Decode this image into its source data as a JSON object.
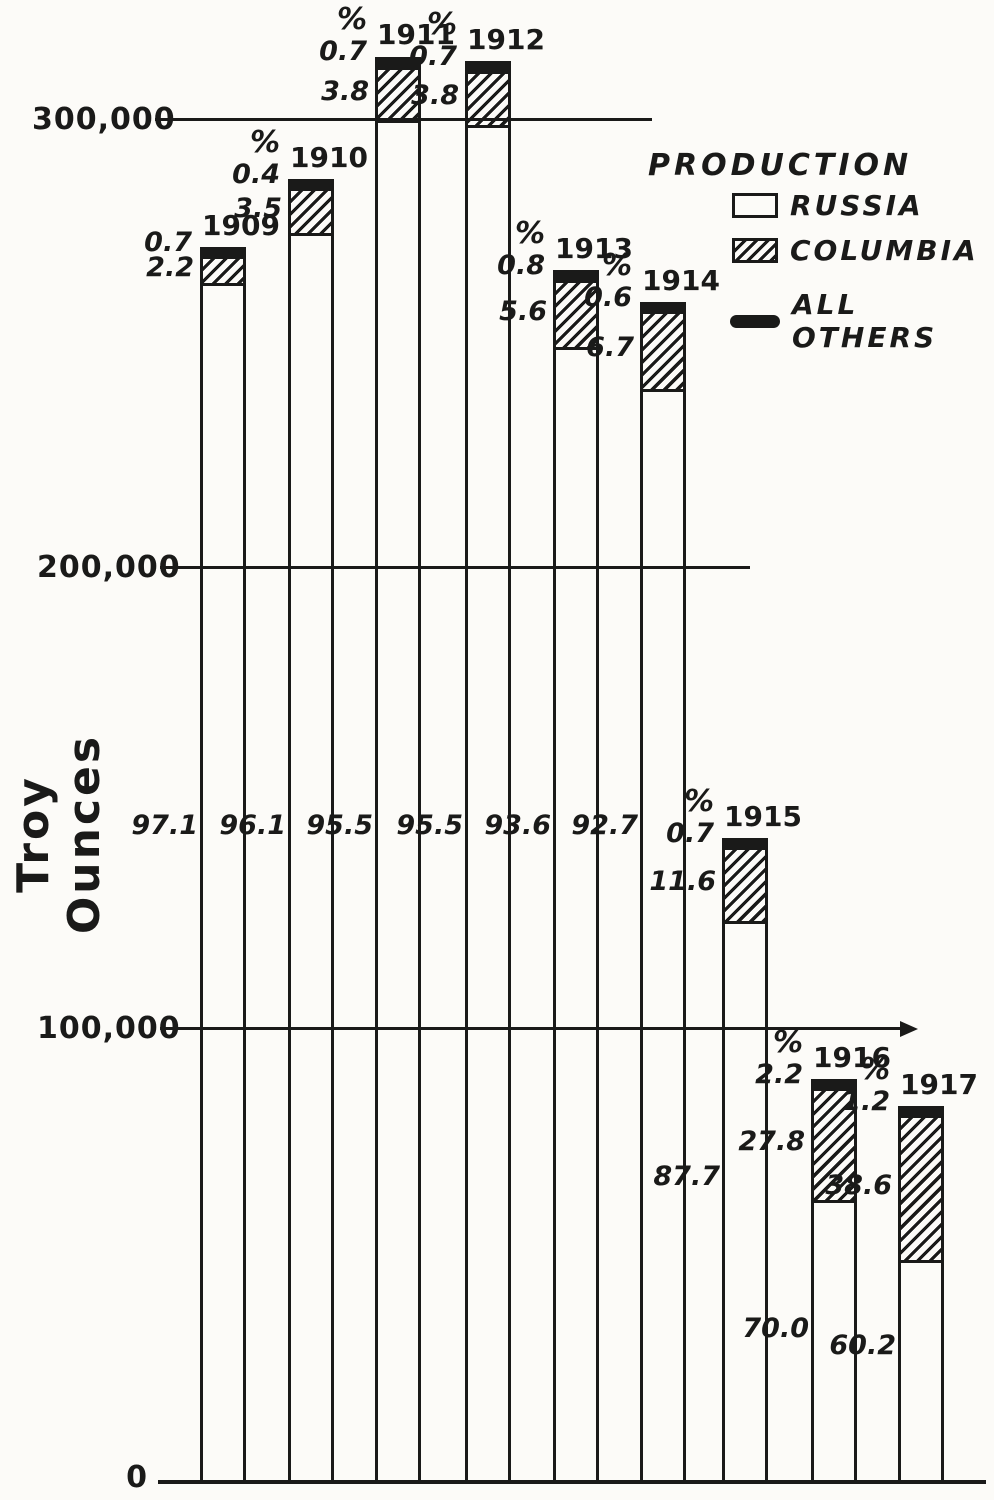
{
  "y_axis": {
    "title": "Troy Ounces",
    "ticks": [
      {
        "label": "300,000",
        "value": 300000
      },
      {
        "label": "200,000",
        "value": 200000
      },
      {
        "label": "100,000",
        "value": 100000
      },
      {
        "label": "0",
        "value": 0
      }
    ]
  },
  "legend": {
    "title": "PRODUCTION",
    "items": [
      {
        "label": "RUSSIA",
        "swatch": "outline"
      },
      {
        "label": "COLUMBIA",
        "swatch": "hatched"
      },
      {
        "label": "ALL OTHERS",
        "swatch": "solid"
      }
    ]
  },
  "chart_data": {
    "type": "bar",
    "stacked": true,
    "title": "PRODUCTION",
    "ylabel": "Troy Ounces",
    "unit": "troy ounces",
    "ylim": [
      0,
      330000
    ],
    "gridlines": [
      100000,
      200000,
      300000
    ],
    "grid": true,
    "legend_position": "top-right",
    "percent_symbol": "%",
    "series_names": [
      "RUSSIA",
      "COLUMBIA",
      "ALL OTHERS"
    ],
    "years": [
      {
        "year": "1909",
        "total_troy_oz": 272000,
        "russia_pct": "97.1",
        "columbia_pct": "2.2",
        "all_others_pct": "0.7",
        "percent_sign": false
      },
      {
        "year": "1910",
        "total_troy_oz": 287000,
        "russia_pct": "96.1",
        "columbia_pct": "3.5",
        "all_others_pct": "0.4",
        "percent_sign": true
      },
      {
        "year": "1911",
        "total_troy_oz": 314000,
        "russia_pct": "95.5",
        "columbia_pct": "3.8",
        "all_others_pct": "0.7",
        "percent_sign": true
      },
      {
        "year": "1912",
        "total_troy_oz": 313000,
        "russia_pct": "95.5",
        "columbia_pct": "3.8",
        "all_others_pct": "0.7",
        "percent_sign": true
      },
      {
        "year": "1913",
        "total_troy_oz": 267000,
        "russia_pct": "93.6",
        "columbia_pct": "5.6",
        "all_others_pct": "0.8",
        "percent_sign": true
      },
      {
        "year": "1914",
        "total_troy_oz": 260000,
        "russia_pct": "92.7",
        "columbia_pct": "6.7",
        "all_others_pct": "0.6",
        "percent_sign": true
      },
      {
        "year": "1915",
        "total_troy_oz": 142000,
        "russia_pct": "87.7",
        "columbia_pct": "11.6",
        "all_others_pct": "0.7",
        "percent_sign": true
      },
      {
        "year": "1916",
        "total_troy_oz": 89000,
        "russia_pct": "70.0",
        "columbia_pct": "27.8",
        "all_others_pct": "2.2",
        "percent_sign": true
      },
      {
        "year": "1917",
        "total_troy_oz": 83000,
        "russia_pct": "60.2",
        "columbia_pct": "38.6",
        "all_others_pct": "1.2",
        "percent_sign": true
      }
    ]
  },
  "colors": {
    "ink": "#1a1a19",
    "paper": "#fcfbf8"
  }
}
